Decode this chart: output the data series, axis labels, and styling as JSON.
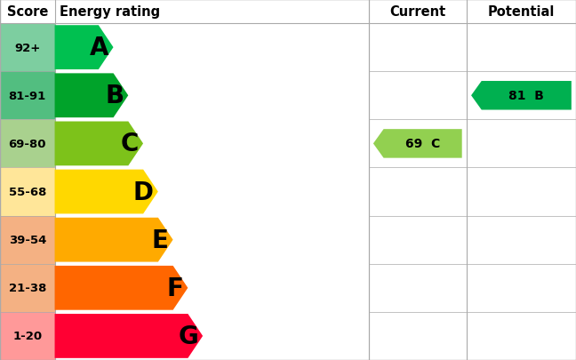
{
  "ratings": [
    {
      "label": "A",
      "score": "92+",
      "bar_color": "#00C050",
      "score_bg": "#7DCEA0",
      "bar_width": 0.295
    },
    {
      "label": "B",
      "score": "81-91",
      "bar_color": "#00A32A",
      "score_bg": "#52BE80",
      "bar_width": 0.37
    },
    {
      "label": "C",
      "score": "69-80",
      "bar_color": "#7DC21A",
      "score_bg": "#A9D18E",
      "bar_width": 0.445
    },
    {
      "label": "D",
      "score": "55-68",
      "bar_color": "#FFD800",
      "score_bg": "#FFE699",
      "bar_width": 0.52
    },
    {
      "label": "E",
      "score": "39-54",
      "bar_color": "#FFAA00",
      "score_bg": "#F4B183",
      "bar_width": 0.595
    },
    {
      "label": "F",
      "score": "21-38",
      "bar_color": "#FF6600",
      "score_bg": "#F4B183",
      "bar_width": 0.67
    },
    {
      "label": "G",
      "score": "1-20",
      "bar_color": "#FF0033",
      "score_bg": "#FF9999",
      "bar_width": 0.745
    }
  ],
  "current": {
    "value": 69,
    "rating": "C",
    "color": "#92D050",
    "row_index": 2
  },
  "potential": {
    "value": 81,
    "rating": "B",
    "color": "#00B050",
    "row_index": 1
  },
  "header": {
    "score": "Score",
    "energy": "Energy rating",
    "current": "Current",
    "potential": "Potential"
  },
  "bg_color": "#FFFFFF",
  "border_color": "#AAAAAA",
  "text_color": "#000000",
  "header_fontsize": 10.5,
  "score_fontsize": 9.5,
  "bar_label_fontsize": 20,
  "arrow_label_fontsize": 10
}
